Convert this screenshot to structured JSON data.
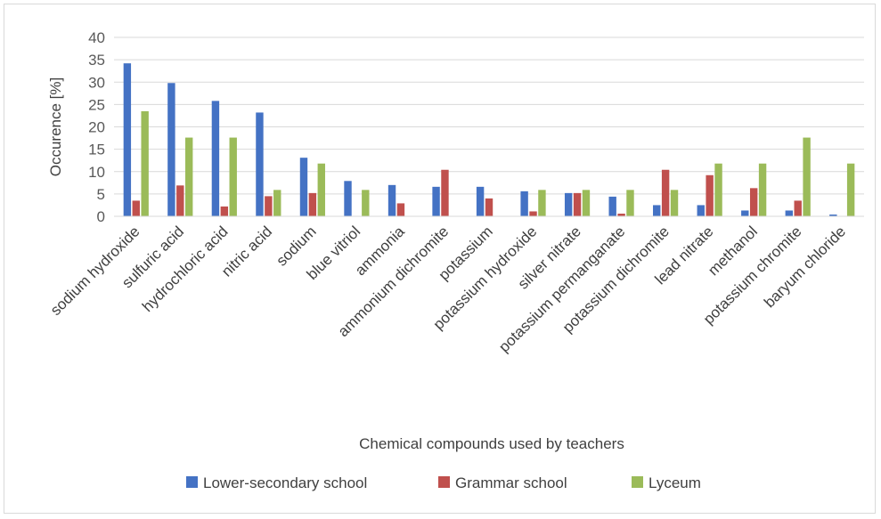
{
  "chart_data": {
    "type": "bar",
    "title": "",
    "xlabel": "Chemical compounds used by teachers",
    "ylabel": "Occurence [%]",
    "ylim": [
      0,
      40
    ],
    "yticks": [
      0,
      5,
      10,
      15,
      20,
      25,
      30,
      35,
      40
    ],
    "grid": true,
    "legend": "bottom",
    "categories": [
      "sodium hydroxide",
      "sulfuric acid",
      "hydrochloric acid",
      "nitric acid",
      "sodium",
      "blue vitriol",
      "ammonia",
      "ammonium dichromite",
      "potassium",
      "potassium hydroxide",
      "silver nitrate",
      "potassium permanganate",
      "potassium dichromite",
      "lead nitrate",
      "methanol",
      "potassium chromite",
      "baryum chloride"
    ],
    "series": [
      {
        "name": "Lower-secondary school",
        "color": "#4472c4",
        "values": [
          34.2,
          29.8,
          25.8,
          23.2,
          13.1,
          7.9,
          7.0,
          6.6,
          6.6,
          5.6,
          5.2,
          4.4,
          2.5,
          2.5,
          1.3,
          1.3,
          0.4
        ]
      },
      {
        "name": "Grammar school",
        "color": "#c0504d",
        "values": [
          3.5,
          6.9,
          2.2,
          4.5,
          5.2,
          0,
          2.9,
          10.4,
          4.0,
          1.1,
          5.2,
          0.6,
          10.4,
          9.2,
          6.3,
          3.5,
          0
        ]
      },
      {
        "name": "Lyceum",
        "color": "#9bbb59",
        "values": [
          23.5,
          17.6,
          17.6,
          5.9,
          11.8,
          5.9,
          0,
          0,
          0,
          5.9,
          5.9,
          5.9,
          5.9,
          11.8,
          11.8,
          17.6,
          11.8
        ]
      }
    ]
  }
}
